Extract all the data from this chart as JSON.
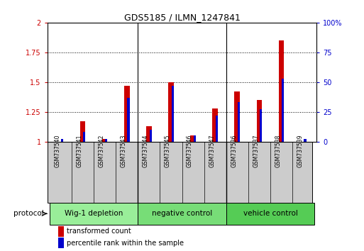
{
  "title": "GDS5185 / ILMN_1247841",
  "samples": [
    "GSM737540",
    "GSM737541",
    "GSM737542",
    "GSM737543",
    "GSM737544",
    "GSM737545",
    "GSM737546",
    "GSM737547",
    "GSM737536",
    "GSM737537",
    "GSM737538",
    "GSM737539"
  ],
  "red_values": [
    1.0,
    1.17,
    1.02,
    1.47,
    1.13,
    1.5,
    1.05,
    1.28,
    1.42,
    1.35,
    1.85,
    1.0
  ],
  "blue_values": [
    2,
    8,
    2,
    37,
    10,
    47,
    5,
    22,
    33,
    27,
    53,
    2
  ],
  "ylim_left": [
    1.0,
    2.0
  ],
  "ylim_right": [
    0,
    100
  ],
  "yticks_left": [
    1.0,
    1.25,
    1.5,
    1.75,
    2.0
  ],
  "yticks_right": [
    0,
    25,
    50,
    75,
    100
  ],
  "ytick_labels_left": [
    "1",
    "1.25",
    "1.5",
    "1.75",
    "2"
  ],
  "ytick_labels_right": [
    "0",
    "25",
    "50",
    "75",
    "100%"
  ],
  "groups": [
    {
      "label": "Wig-1 depletion",
      "start": 0,
      "end": 3,
      "color": "#99ee99"
    },
    {
      "label": "negative control",
      "start": 4,
      "end": 7,
      "color": "#77dd77"
    },
    {
      "label": "vehicle control",
      "start": 8,
      "end": 11,
      "color": "#55cc55"
    }
  ],
  "red_color": "#cc0000",
  "blue_color": "#0000cc",
  "bar_width": 0.25,
  "blue_bar_width": 0.1,
  "bg_color": "#ffffff",
  "plot_bg": "#ffffff",
  "tick_label_color_left": "#cc0000",
  "tick_label_color_right": "#0000cc",
  "protocol_label": "protocol",
  "legend_red": "transformed count",
  "legend_blue": "percentile rank within the sample",
  "group_box_color": "#cccccc",
  "separator_color": "#000000"
}
